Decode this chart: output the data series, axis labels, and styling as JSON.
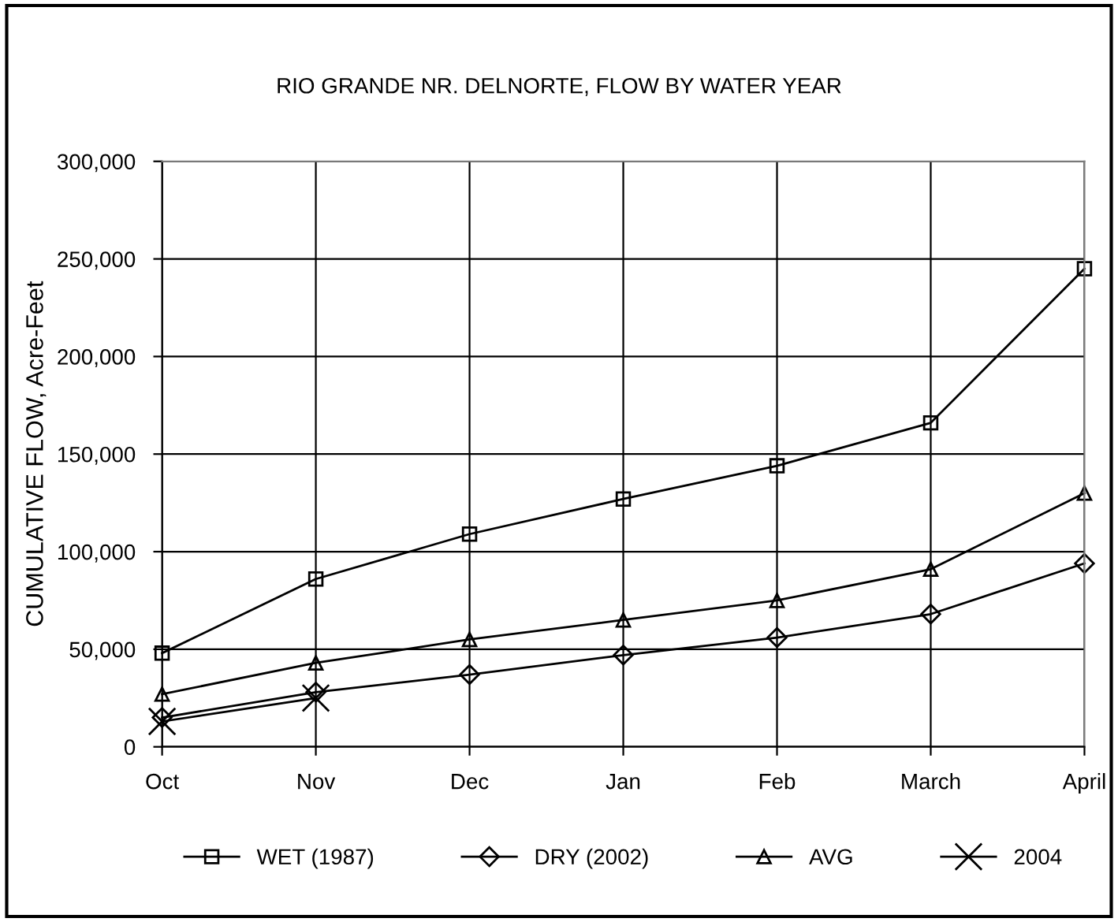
{
  "chart_data": {
    "type": "line",
    "title": "RIO GRANDE NR. DELNORTE, FLOW BY WATER YEAR",
    "ylabel": "CUMULATIVE FLOW, Acre-Feet",
    "categories": [
      "Oct",
      "Nov",
      "Dec",
      "Jan",
      "Feb",
      "March",
      "April"
    ],
    "series": [
      {
        "name": "WET (1987)",
        "color": "#000000",
        "marker": "square",
        "values": [
          48000,
          86000,
          109000,
          127000,
          144000,
          166000,
          245000
        ]
      },
      {
        "name": "DRY (2002)",
        "color": "#000000",
        "marker": "diamond",
        "values": [
          15000,
          28000,
          37000,
          47000,
          56000,
          68000,
          94000
        ]
      },
      {
        "name": "AVG",
        "color": "#000000",
        "marker": "triangle",
        "values": [
          27000,
          43000,
          55000,
          65000,
          75000,
          91000,
          130000
        ]
      },
      {
        "name": "2004",
        "color": "#000000",
        "marker": "cross",
        "values": [
          13000,
          25000,
          null,
          null,
          null,
          null,
          null
        ]
      }
    ],
    "ylim": [
      0,
      300000
    ],
    "yticks": [
      {
        "value": 0,
        "label": "0"
      },
      {
        "value": 50000,
        "label": "50,000"
      },
      {
        "value": 100000,
        "label": "100,000"
      },
      {
        "value": 150000,
        "label": "150,000"
      },
      {
        "value": 200000,
        "label": "200,000"
      },
      {
        "value": 250000,
        "label": "250,000"
      },
      {
        "value": 300000,
        "label": "300,000"
      }
    ],
    "grid": true,
    "legend": "bottom",
    "line_style": "solid"
  }
}
